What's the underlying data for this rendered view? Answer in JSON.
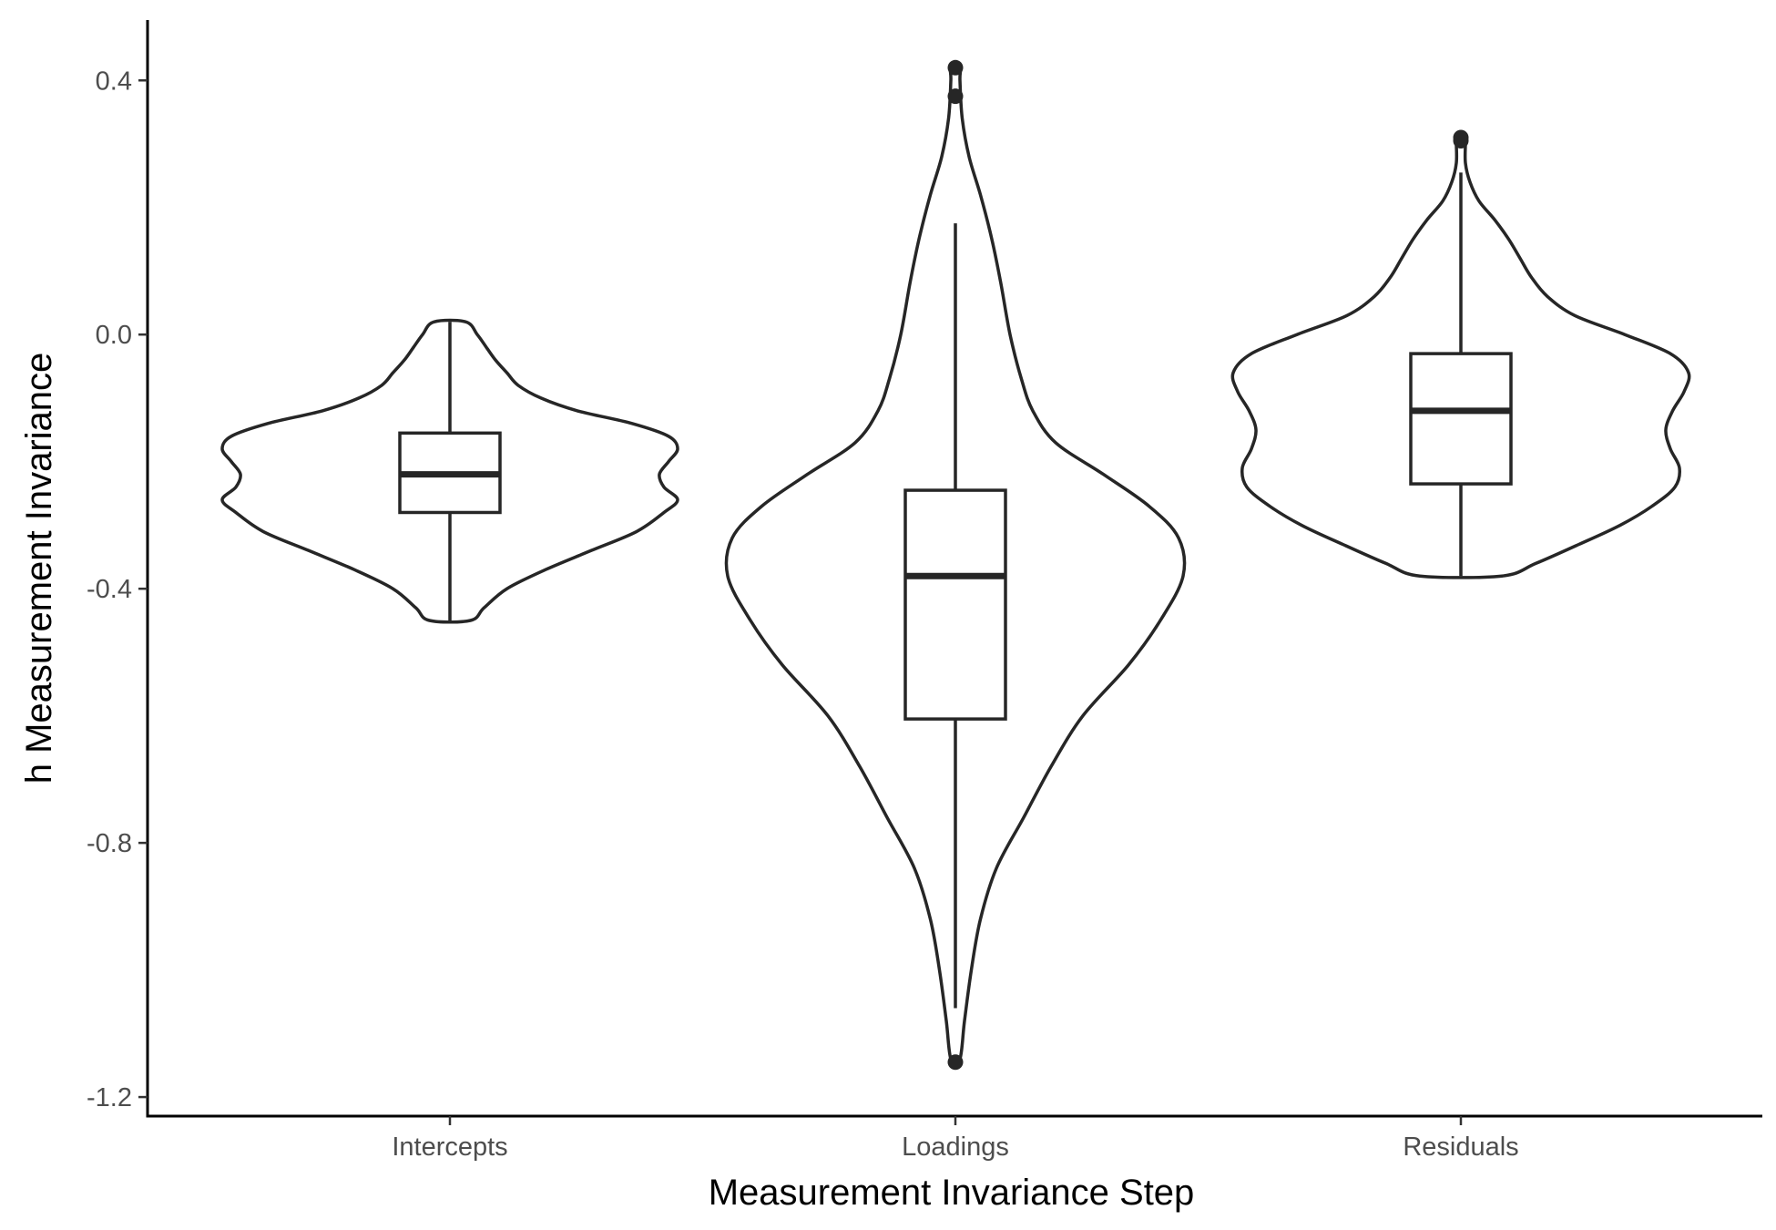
{
  "chart_data": {
    "type": "violin",
    "xlabel": "Measurement Invariance Step",
    "ylabel": "h Measurement Invariance",
    "ylim": [
      -1.23,
      0.495
    ],
    "yticks": [
      0.4,
      0.0,
      -0.4,
      -0.8,
      -1.2
    ],
    "ytick_labels": [
      "0.4",
      "0.0",
      "-0.4",
      "-0.8",
      "-1.2"
    ],
    "categories": [
      "Intercepts",
      "Loadings",
      "Residuals"
    ],
    "grid": false,
    "legend": "none",
    "series": [
      {
        "category": "Intercepts",
        "box": {
          "q1": -0.28,
          "median": -0.22,
          "q3": -0.155,
          "whisker_low": -0.45,
          "whisker_high": 0.02
        },
        "outliers": [],
        "density": [
          [
            -0.45,
            0.09
          ],
          [
            -0.43,
            0.15
          ],
          [
            -0.4,
            0.25
          ],
          [
            -0.37,
            0.42
          ],
          [
            -0.34,
            0.62
          ],
          [
            -0.31,
            0.82
          ],
          [
            -0.28,
            0.94
          ],
          [
            -0.26,
            1.0
          ],
          [
            -0.24,
            0.94
          ],
          [
            -0.22,
            0.92
          ],
          [
            -0.2,
            0.96
          ],
          [
            -0.18,
            1.0
          ],
          [
            -0.16,
            0.96
          ],
          [
            -0.14,
            0.8
          ],
          [
            -0.12,
            0.56
          ],
          [
            -0.1,
            0.4
          ],
          [
            -0.08,
            0.3
          ],
          [
            -0.06,
            0.25
          ],
          [
            -0.04,
            0.2
          ],
          [
            -0.02,
            0.16
          ],
          [
            0.0,
            0.12
          ],
          [
            0.02,
            0.07
          ]
        ]
      },
      {
        "category": "Loadings",
        "box": {
          "q1": -0.605,
          "median": -0.38,
          "q3": -0.245,
          "whisker_low": -1.06,
          "whisker_high": 0.175
        },
        "outliers": [
          0.42,
          0.375,
          -1.145
        ],
        "density": [
          [
            -1.14,
            0.02
          ],
          [
            -1.08,
            0.04
          ],
          [
            -1.0,
            0.07
          ],
          [
            -0.92,
            0.11
          ],
          [
            -0.84,
            0.18
          ],
          [
            -0.76,
            0.3
          ],
          [
            -0.68,
            0.42
          ],
          [
            -0.6,
            0.56
          ],
          [
            -0.52,
            0.76
          ],
          [
            -0.45,
            0.9
          ],
          [
            -0.38,
            1.0
          ],
          [
            -0.32,
            0.98
          ],
          [
            -0.27,
            0.85
          ],
          [
            -0.22,
            0.65
          ],
          [
            -0.17,
            0.44
          ],
          [
            -0.12,
            0.34
          ],
          [
            -0.07,
            0.29
          ],
          [
            0.0,
            0.24
          ],
          [
            0.08,
            0.2
          ],
          [
            0.15,
            0.16
          ],
          [
            0.22,
            0.11
          ],
          [
            0.28,
            0.06
          ],
          [
            0.34,
            0.03
          ],
          [
            0.4,
            0.02
          ],
          [
            0.42,
            0.02
          ]
        ]
      },
      {
        "category": "Residuals",
        "box": {
          "q1": -0.235,
          "median": -0.12,
          "q3": -0.03,
          "whisker_low": -0.38,
          "whisker_high": 0.255
        },
        "outliers": [
          0.31,
          0.305
        ],
        "density": [
          [
            -0.38,
            0.18
          ],
          [
            -0.36,
            0.33
          ],
          [
            -0.33,
            0.52
          ],
          [
            -0.3,
            0.7
          ],
          [
            -0.27,
            0.84
          ],
          [
            -0.24,
            0.94
          ],
          [
            -0.21,
            0.96
          ],
          [
            -0.18,
            0.92
          ],
          [
            -0.15,
            0.9
          ],
          [
            -0.12,
            0.93
          ],
          [
            -0.09,
            0.98
          ],
          [
            -0.06,
            1.0
          ],
          [
            -0.03,
            0.92
          ],
          [
            0.0,
            0.72
          ],
          [
            0.03,
            0.5
          ],
          [
            0.06,
            0.38
          ],
          [
            0.09,
            0.31
          ],
          [
            0.12,
            0.26
          ],
          [
            0.15,
            0.21
          ],
          [
            0.18,
            0.15
          ],
          [
            0.21,
            0.08
          ],
          [
            0.24,
            0.04
          ],
          [
            0.27,
            0.02
          ],
          [
            0.3,
            0.02
          ],
          [
            0.31,
            0.02
          ]
        ]
      }
    ]
  }
}
